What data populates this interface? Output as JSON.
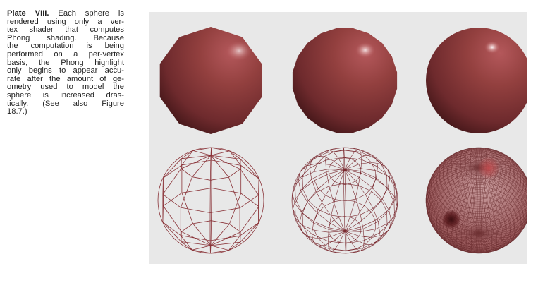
{
  "caption": {
    "plate_label": "Plate VIII.",
    "lines": [
      " Each sphere is",
      "rendered using only a ver-",
      "tex shader that computes",
      "Phong shading. Because",
      "the computation is being",
      "performed on a per-vertex",
      "basis, the Phong highlight",
      "only begins to appear accu-",
      "rate after the amount of ge-",
      "ometry used to model the",
      "sphere is increased dras-",
      "tically.    (See also Figure",
      "18.7.)"
    ]
  },
  "figure": {
    "background": "#e8e8e8",
    "sphere_color": "#8e3b3f",
    "highlight_color": "#ffffff",
    "wire_color": "#8a3338",
    "spheres": [
      {
        "name": "low-poly",
        "segments": 8
      },
      {
        "name": "medium-poly",
        "segments": 16
      },
      {
        "name": "high-poly",
        "segments": 64
      }
    ]
  }
}
